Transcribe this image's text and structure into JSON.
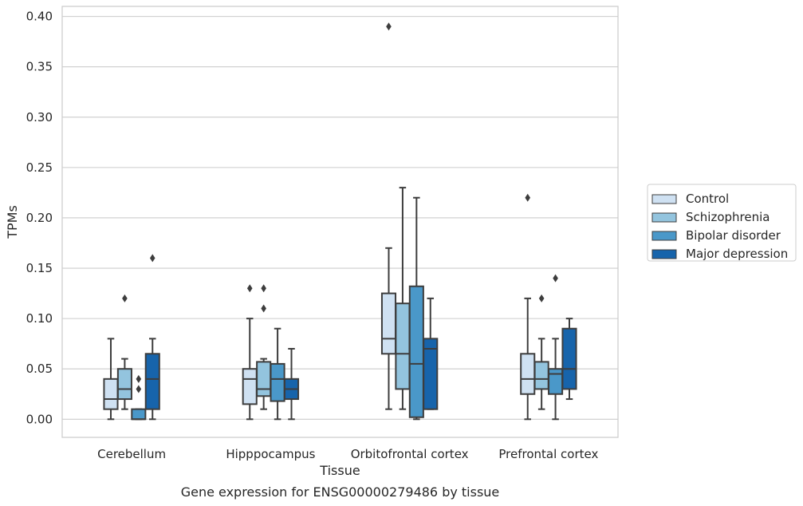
{
  "caption": "Gene expression for ENSG00000279486 by tissue",
  "chart_data": {
    "type": "box",
    "title": "",
    "xlabel": "Tissue",
    "ylabel": "TPMs",
    "ylim": [
      -0.018,
      0.41
    ],
    "yticks": [
      "0.00",
      "0.05",
      "0.10",
      "0.15",
      "0.20",
      "0.25",
      "0.30",
      "0.35",
      "0.40"
    ],
    "grid": "horizontal",
    "legend_position": "right",
    "categories": [
      "Cerebellum",
      "Hipppocampus",
      "Orbitofrontal cortex",
      "Prefrontal cortex"
    ],
    "series": [
      {
        "name": "Control",
        "color": "#cfe1f2",
        "boxes": [
          {
            "whislo": 0.0,
            "q1": 0.01,
            "med": 0.02,
            "q3": 0.04,
            "whishi": 0.08,
            "fliers": []
          },
          {
            "whislo": 0.0,
            "q1": 0.015,
            "med": 0.04,
            "q3": 0.05,
            "whishi": 0.1,
            "fliers": [
              0.13
            ]
          },
          {
            "whislo": 0.01,
            "q1": 0.065,
            "med": 0.08,
            "q3": 0.125,
            "whishi": 0.17,
            "fliers": [
              0.39
            ]
          },
          {
            "whislo": 0.0,
            "q1": 0.025,
            "med": 0.04,
            "q3": 0.065,
            "whishi": 0.12,
            "fliers": [
              0.22
            ]
          }
        ]
      },
      {
        "name": "Schizophrenia",
        "color": "#93c4de",
        "boxes": [
          {
            "whislo": 0.01,
            "q1": 0.02,
            "med": 0.03,
            "q3": 0.05,
            "whishi": 0.06,
            "fliers": [
              0.12
            ]
          },
          {
            "whislo": 0.01,
            "q1": 0.023,
            "med": 0.03,
            "q3": 0.057,
            "whishi": 0.06,
            "fliers": [
              0.11,
              0.13
            ]
          },
          {
            "whislo": 0.01,
            "q1": 0.03,
            "med": 0.065,
            "q3": 0.115,
            "whishi": 0.23,
            "fliers": []
          },
          {
            "whislo": 0.01,
            "q1": 0.03,
            "med": 0.04,
            "q3": 0.057,
            "whishi": 0.08,
            "fliers": [
              0.12
            ]
          }
        ]
      },
      {
        "name": "Bipolar disorder",
        "color": "#4a98c9",
        "boxes": [
          {
            "whislo": 0.0,
            "q1": 0.0,
            "med": 0.0,
            "q3": 0.01,
            "whishi": 0.01,
            "fliers": [
              0.03,
              0.04
            ]
          },
          {
            "whislo": 0.0,
            "q1": 0.018,
            "med": 0.04,
            "q3": 0.055,
            "whishi": 0.09,
            "fliers": []
          },
          {
            "whislo": 0.0,
            "q1": 0.002,
            "med": 0.055,
            "q3": 0.132,
            "whishi": 0.22,
            "fliers": []
          },
          {
            "whislo": 0.0,
            "q1": 0.025,
            "med": 0.045,
            "q3": 0.05,
            "whishi": 0.08,
            "fliers": [
              0.14
            ]
          }
        ]
      },
      {
        "name": "Major depression",
        "color": "#1764ab",
        "boxes": [
          {
            "whislo": 0.0,
            "q1": 0.01,
            "med": 0.04,
            "q3": 0.065,
            "whishi": 0.08,
            "fliers": [
              0.16
            ]
          },
          {
            "whislo": 0.0,
            "q1": 0.02,
            "med": 0.03,
            "q3": 0.04,
            "whishi": 0.07,
            "fliers": []
          },
          {
            "whislo": 0.01,
            "q1": 0.01,
            "med": 0.07,
            "q3": 0.08,
            "whishi": 0.12,
            "fliers": []
          },
          {
            "whislo": 0.02,
            "q1": 0.03,
            "med": 0.05,
            "q3": 0.09,
            "whishi": 0.1,
            "fliers": []
          }
        ]
      }
    ]
  }
}
